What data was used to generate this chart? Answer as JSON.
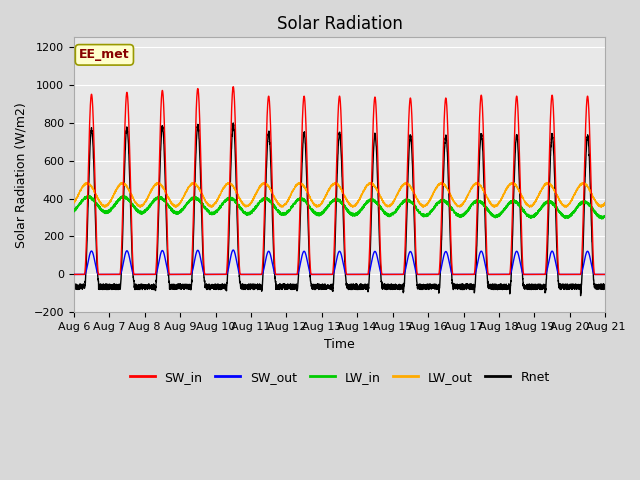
{
  "title": "Solar Radiation",
  "ylabel": "Solar Radiation (W/m2)",
  "xlabel": "Time",
  "ylim": [
    -200,
    1250
  ],
  "yticks": [
    -200,
    0,
    200,
    400,
    600,
    800,
    1000,
    1200
  ],
  "x_tick_labels": [
    "Aug 6",
    "Aug 7",
    "Aug 8",
    "Aug 9",
    "Aug 10",
    "Aug 11",
    "Aug 12",
    "Aug 13",
    "Aug 14",
    "Aug 15",
    "Aug 16",
    "Aug 17",
    "Aug 18",
    "Aug 19",
    "Aug 20",
    "Aug 21"
  ],
  "series_colors": {
    "SW_in": "#ff0000",
    "SW_out": "#0000ff",
    "LW_in": "#00cc00",
    "LW_out": "#ffaa00",
    "Rnet": "#000000"
  },
  "annotation_text": "EE_met",
  "annotation_bg": "#ffffcc",
  "annotation_border": "#999900",
  "fig_bg": "#d8d8d8",
  "plot_bg": "#e8e8e8",
  "n_days": 15,
  "pts_per_day": 288,
  "SW_in_peak": 950,
  "LW_in_base": 370,
  "LW_in_amp": 40,
  "LW_out_base": 420,
  "LW_out_amp": 60,
  "Rnet_night": -65,
  "title_fontsize": 12,
  "label_fontsize": 9,
  "tick_fontsize": 8,
  "legend_fontsize": 9,
  "linewidth": 1.0
}
